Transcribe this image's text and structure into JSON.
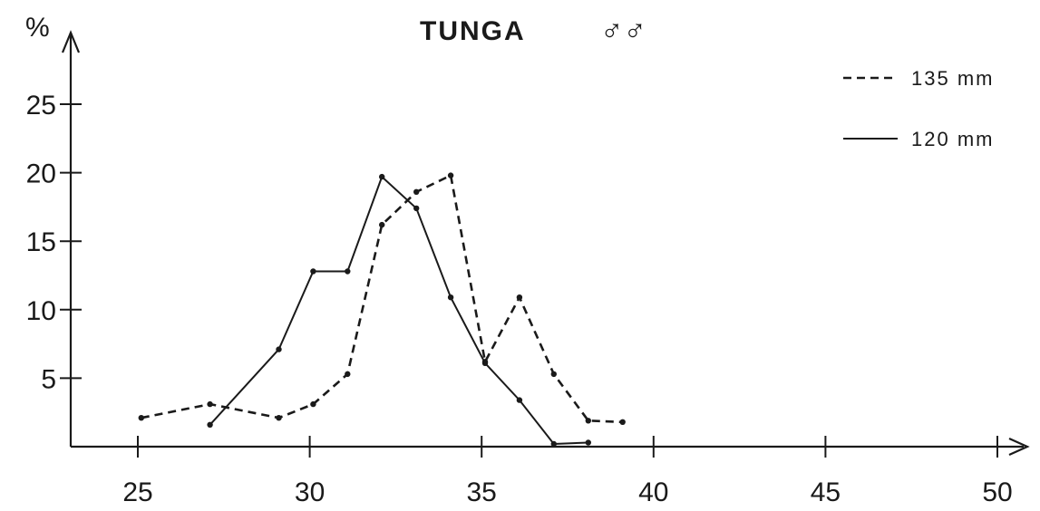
{
  "chart_data": {
    "type": "line",
    "title": "TUNGA",
    "title_symbol": "♂♂",
    "ylabel": "%",
    "xlabel": "",
    "xlim": [
      23.2,
      51
    ],
    "ylim": [
      0,
      30
    ],
    "x_ticks": [
      "25",
      "30",
      "35",
      "40",
      "45",
      "50"
    ],
    "y_ticks": [
      "5",
      "10",
      "15",
      "20",
      "25"
    ],
    "grid": false,
    "legend": "top-right",
    "series": [
      {
        "name": "135 mm",
        "style": "dashed",
        "x": [
          25.1,
          27.1,
          29.1,
          30.1,
          31.1,
          32.1,
          33.1,
          34.1,
          35.1,
          36.1,
          37.1,
          38.1,
          39.1
        ],
        "y": [
          2.1,
          3.1,
          2.1,
          3.1,
          5.3,
          16.2,
          18.6,
          19.8,
          6.2,
          10.9,
          5.3,
          1.9,
          1.8
        ]
      },
      {
        "name": "120 mm",
        "style": "solid",
        "x": [
          27.1,
          29.1,
          30.1,
          31.1,
          32.1,
          33.1,
          34.1,
          35.1,
          36.1,
          37.1,
          38.1
        ],
        "y": [
          1.6,
          7.1,
          12.8,
          12.8,
          19.7,
          17.4,
          10.9,
          6.1,
          3.4,
          0.2,
          0.3
        ]
      }
    ]
  }
}
